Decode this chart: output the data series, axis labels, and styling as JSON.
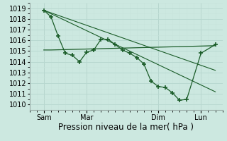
{
  "background_color": "#cce8e0",
  "grid_color_major": "#b8d8d0",
  "grid_color_minor": "#c8e4dc",
  "line_color": "#1a5c28",
  "marker_color": "#1a5c28",
  "title": "Pression niveau de la mer( hPa )",
  "ylim": [
    1009.5,
    1019.5
  ],
  "yticks": [
    1010,
    1011,
    1012,
    1013,
    1014,
    1015,
    1016,
    1017,
    1018,
    1019
  ],
  "xtick_labels": [
    "Sam",
    "Mar",
    "Dim",
    "Lun"
  ],
  "xtick_positions": [
    1,
    4,
    9,
    12
  ],
  "x_vlines": [
    1,
    4,
    9,
    12
  ],
  "series1_x": [
    1,
    1.5,
    2,
    2.5,
    3,
    3.5,
    4,
    4.5,
    5,
    5.5,
    6,
    6.5,
    7,
    7.5,
    8,
    8.5,
    9,
    9.5,
    10,
    10.5,
    11,
    12,
    13
  ],
  "series1_y": [
    1018.8,
    1018.2,
    1016.4,
    1014.8,
    1014.6,
    1014.0,
    1014.9,
    1015.1,
    1016.1,
    1016.1,
    1015.6,
    1015.1,
    1014.8,
    1014.4,
    1013.8,
    1012.2,
    1011.7,
    1011.6,
    1011.1,
    1010.4,
    1010.5,
    1014.8,
    1015.6
  ],
  "series2_x": [
    1,
    1.5,
    13
  ],
  "series2_y": [
    1015.1,
    1015.1,
    1015.5
  ],
  "series3_x": [
    1,
    13
  ],
  "series3_y": [
    1018.8,
    1011.2
  ],
  "series4_x": [
    1,
    13
  ],
  "series4_y": [
    1018.8,
    1013.2
  ],
  "xlim": [
    0,
    13.5
  ],
  "xlabel_fontsize": 8.5,
  "tick_fontsize": 7
}
